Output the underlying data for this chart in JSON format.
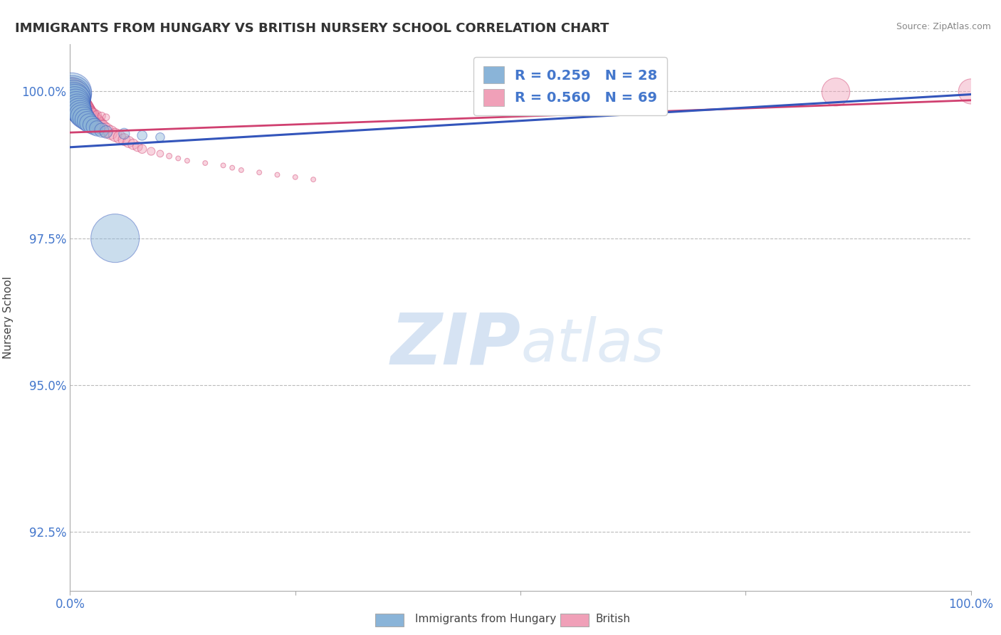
{
  "title": "IMMIGRANTS FROM HUNGARY VS BRITISH NURSERY SCHOOL CORRELATION CHART",
  "source": "Source: ZipAtlas.com",
  "ylabel": "Nursery School",
  "xlim": [
    0.0,
    1.0
  ],
  "ylim": [
    0.915,
    1.008
  ],
  "yticks": [
    0.925,
    0.95,
    0.975,
    1.0
  ],
  "ytick_labels": [
    "92.5%",
    "95.0%",
    "97.5%",
    "100.0%"
  ],
  "xticks": [
    0.0,
    0.25,
    0.5,
    0.75,
    1.0
  ],
  "xtick_labels": [
    "0.0%",
    "",
    "",
    "",
    "100.0%"
  ],
  "legend_r1": "R = 0.259   N = 28",
  "legend_r2": "R = 0.560   N = 69",
  "color_blue": "#8ab4d8",
  "color_pink": "#f0a0b8",
  "color_blue_line": "#3355bb",
  "color_pink_line": "#d04070",
  "watermark_zip": "ZIP",
  "watermark_atlas": "atlas",
  "bottom_legend_items": [
    "Immigrants from Hungary",
    "British"
  ],
  "blue_x": [
    0.002,
    0.003,
    0.003,
    0.004,
    0.004,
    0.005,
    0.005,
    0.006,
    0.007,
    0.008,
    0.009,
    0.01,
    0.011,
    0.012,
    0.013,
    0.015,
    0.017,
    0.019,
    0.021,
    0.024,
    0.027,
    0.03,
    0.035,
    0.04,
    0.06,
    0.08,
    0.1,
    0.05
  ],
  "blue_y": [
    0.9998,
    0.9995,
    0.9993,
    0.999,
    0.9987,
    0.9985,
    0.9982,
    0.9979,
    0.9976,
    0.9973,
    0.997,
    0.9967,
    0.9964,
    0.9961,
    0.9958,
    0.9955,
    0.9952,
    0.9949,
    0.9946,
    0.9943,
    0.994,
    0.9937,
    0.9934,
    0.9931,
    0.9928,
    0.9925,
    0.9922,
    0.975
  ],
  "blue_s": [
    200,
    180,
    160,
    150,
    140,
    130,
    120,
    110,
    100,
    90,
    85,
    80,
    75,
    70,
    65,
    60,
    55,
    50,
    45,
    40,
    35,
    30,
    25,
    20,
    15,
    12,
    10,
    300
  ],
  "pink_x": [
    0.001,
    0.002,
    0.003,
    0.003,
    0.004,
    0.005,
    0.006,
    0.007,
    0.008,
    0.009,
    0.01,
    0.011,
    0.012,
    0.013,
    0.014,
    0.015,
    0.016,
    0.017,
    0.018,
    0.019,
    0.02,
    0.022,
    0.024,
    0.026,
    0.028,
    0.03,
    0.033,
    0.036,
    0.04,
    0.045,
    0.05,
    0.055,
    0.06,
    0.065,
    0.07,
    0.075,
    0.08,
    0.09,
    0.1,
    0.11,
    0.12,
    0.13,
    0.15,
    0.17,
    0.18,
    0.19,
    0.21,
    0.23,
    0.25,
    0.27,
    0.003,
    0.004,
    0.005,
    0.006,
    0.007,
    0.008,
    0.009,
    0.01,
    0.012,
    0.014,
    0.016,
    0.018,
    0.022,
    0.026,
    0.03,
    0.035,
    0.04,
    0.85,
    1.0
  ],
  "pink_y": [
    0.9998,
    0.9997,
    0.9996,
    0.9994,
    0.9993,
    0.9991,
    0.9989,
    0.9987,
    0.9985,
    0.9983,
    0.9981,
    0.9979,
    0.9977,
    0.9975,
    0.9973,
    0.9971,
    0.9969,
    0.9967,
    0.9965,
    0.9963,
    0.9961,
    0.9958,
    0.9955,
    0.9952,
    0.9949,
    0.9946,
    0.9942,
    0.9938,
    0.9934,
    0.993,
    0.9926,
    0.9922,
    0.9918,
    0.9914,
    0.991,
    0.9906,
    0.9902,
    0.9898,
    0.9894,
    0.989,
    0.9886,
    0.9882,
    0.9878,
    0.9874,
    0.987,
    0.9866,
    0.9862,
    0.9858,
    0.9854,
    0.985,
    0.9988,
    0.9986,
    0.9984,
    0.9982,
    0.998,
    0.9978,
    0.9976,
    0.9974,
    0.9972,
    0.997,
    0.9968,
    0.9966,
    0.9964,
    0.9962,
    0.996,
    0.9958,
    0.9956,
    0.9999,
    1.0
  ],
  "pink_s": [
    120,
    110,
    105,
    100,
    95,
    90,
    85,
    80,
    75,
    70,
    65,
    60,
    58,
    56,
    54,
    52,
    50,
    48,
    46,
    44,
    42,
    40,
    38,
    36,
    34,
    32,
    30,
    28,
    26,
    24,
    22,
    20,
    18,
    16,
    14,
    12,
    10,
    8,
    6,
    4,
    3,
    3,
    3,
    3,
    3,
    3,
    3,
    3,
    3,
    3,
    80,
    75,
    70,
    65,
    60,
    55,
    50,
    45,
    40,
    35,
    30,
    25,
    20,
    15,
    10,
    8,
    6,
    100,
    80
  ]
}
